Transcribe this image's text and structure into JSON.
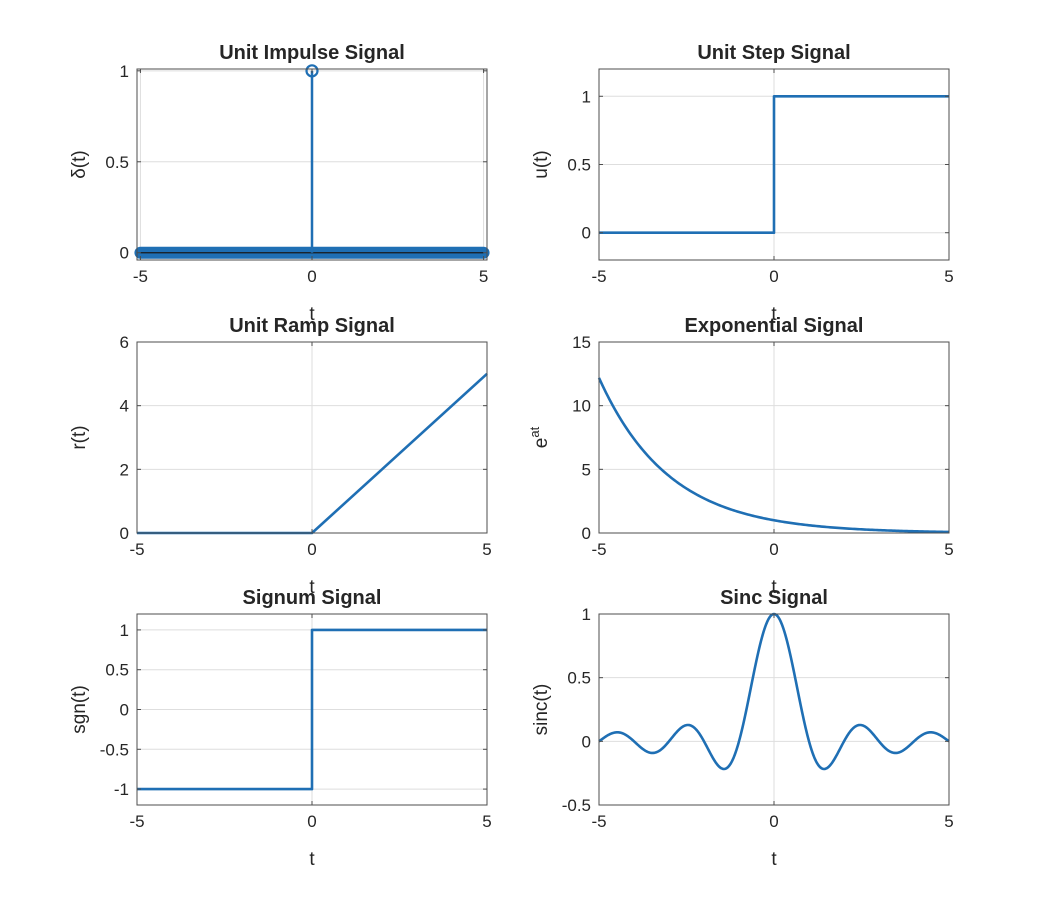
{
  "line_color": "#1f6fb4",
  "chart_data": [
    {
      "type": "line",
      "title": "Unit Impulse Signal",
      "xlabel": "t",
      "ylabel": "δ(t)",
      "xlim": [
        -5.1,
        5.1
      ],
      "ylim": [
        -0.04,
        1.01
      ],
      "xticks": [
        -5,
        0,
        5
      ],
      "yticks": [
        0,
        0.5,
        1
      ],
      "grid": true,
      "series": [
        {
          "style": "stem",
          "x": [
            -5,
            0,
            5
          ],
          "y": [
            0,
            1,
            0
          ]
        }
      ]
    },
    {
      "type": "line",
      "title": "Unit Step Signal",
      "xlabel": "t",
      "ylabel": "u(t)",
      "xlim": [
        -5,
        5
      ],
      "ylim": [
        -0.2,
        1.2
      ],
      "xticks": [
        -5,
        0,
        5
      ],
      "yticks": [
        0,
        0.5,
        1
      ],
      "grid": true,
      "series": [
        {
          "x": [
            -5,
            0,
            0,
            5
          ],
          "y": [
            0,
            0,
            1,
            1
          ]
        }
      ]
    },
    {
      "type": "line",
      "title": "Unit Ramp Signal",
      "xlabel": "t",
      "ylabel": "r(t)",
      "xlim": [
        -5,
        5
      ],
      "ylim": [
        0,
        6
      ],
      "xticks": [
        -5,
        0,
        5
      ],
      "yticks": [
        0,
        2,
        4,
        6
      ],
      "grid": true,
      "series": [
        {
          "x": [
            -5,
            0,
            5
          ],
          "y": [
            0,
            0,
            5
          ]
        }
      ]
    },
    {
      "type": "line",
      "title": "Exponential Signal",
      "xlabel": "t",
      "ylabel": "e",
      "ylabel_sup": "at",
      "xlim": [
        -5,
        5
      ],
      "ylim": [
        0,
        15
      ],
      "xticks": [
        -5,
        0,
        5
      ],
      "yticks": [
        0,
        5,
        10,
        15
      ],
      "grid": true,
      "series": [
        {
          "x": [
            -5,
            -4.5,
            -4,
            -3.5,
            -3,
            -2.5,
            -2,
            -1.5,
            -1,
            -0.5,
            0,
            0.5,
            1,
            1.5,
            2,
            2.5,
            3,
            3.5,
            4,
            4.5,
            5
          ],
          "y": [
            12.18,
            9.49,
            7.39,
            5.75,
            4.48,
            3.49,
            2.72,
            2.12,
            1.65,
            1.28,
            1.0,
            0.78,
            0.61,
            0.47,
            0.37,
            0.29,
            0.22,
            0.17,
            0.14,
            0.11,
            0.08
          ]
        }
      ]
    },
    {
      "type": "line",
      "title": "Signum Signal",
      "xlabel": "t",
      "ylabel": "sgn(t)",
      "xlim": [
        -5,
        5
      ],
      "ylim": [
        -1.2,
        1.2
      ],
      "xticks": [
        -5,
        0,
        5
      ],
      "yticks": [
        -1,
        -0.5,
        0,
        0.5,
        1
      ],
      "grid": true,
      "series": [
        {
          "x": [
            -5,
            0,
            0,
            5
          ],
          "y": [
            -1,
            -1,
            1,
            1
          ]
        }
      ]
    },
    {
      "type": "line",
      "title": "Sinc Signal",
      "xlabel": "t",
      "ylabel": "sinc(t)",
      "xlim": [
        -5,
        5
      ],
      "ylim": [
        -0.5,
        1
      ],
      "xticks": [
        -5,
        0,
        5
      ],
      "yticks": [
        -0.5,
        0,
        0.5,
        1
      ],
      "grid": true,
      "series": [
        {
          "x": [
            -5,
            -4.75,
            -4.5,
            -4.25,
            -4,
            -3.75,
            -3.5,
            -3.25,
            -3,
            -2.75,
            -2.5,
            -2.25,
            -2,
            -1.75,
            -1.5,
            -1.25,
            -1,
            -0.75,
            -0.5,
            -0.25,
            0,
            0.25,
            0.5,
            0.75,
            1,
            1.25,
            1.5,
            1.75,
            2,
            2.25,
            2.5,
            2.75,
            3,
            3.25,
            3.5,
            3.75,
            4,
            4.25,
            4.5,
            4.75,
            5
          ],
          "y": [
            0,
            0.047,
            0.071,
            0.053,
            0,
            -0.06,
            -0.091,
            -0.069,
            0,
            0.082,
            0.127,
            0.1,
            0,
            -0.129,
            -0.212,
            -0.18,
            0,
            0.3,
            0.637,
            0.9,
            1,
            0.9,
            0.637,
            0.3,
            0,
            -0.18,
            -0.212,
            -0.129,
            0,
            0.1,
            0.127,
            0.082,
            0,
            -0.069,
            -0.091,
            -0.06,
            0,
            0.053,
            0.071,
            0.047,
            0
          ]
        }
      ]
    }
  ]
}
